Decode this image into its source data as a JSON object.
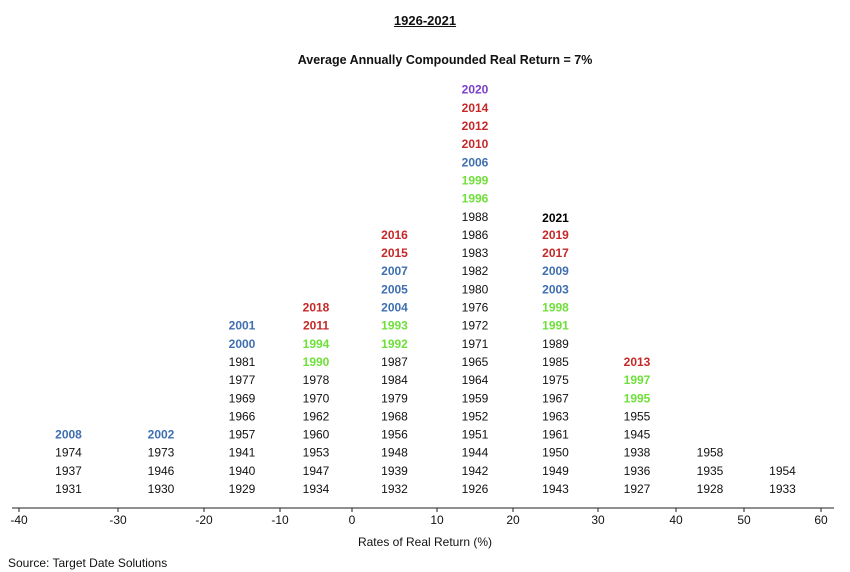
{
  "chart_data": {
    "type": "histogram",
    "title": "1926-2021",
    "subtitle": "Average Annually Compounded Real Return = 7%",
    "xlabel": "Rates of Real Return (%)",
    "source": "Source: Target Date Solutions",
    "xlim": [
      -40,
      60
    ],
    "xticks": [
      "-40",
      "-30",
      "-20",
      "-10",
      "0",
      "10",
      "20",
      "30",
      "40",
      "50",
      "60"
    ],
    "colors": {
      "default": "#111111",
      "red": "#c62828",
      "blue": "#3f6fb0",
      "green": "#6fe03a",
      "purple": "#7a3fc8"
    },
    "bins": [
      {
        "range": [
          -40,
          -30
        ],
        "years": [
          {
            "year": "1931",
            "color": "default"
          },
          {
            "year": "1937",
            "color": "default"
          },
          {
            "year": "1974",
            "color": "default"
          },
          {
            "year": "2008",
            "color": "blue"
          }
        ]
      },
      {
        "range": [
          -30,
          -20
        ],
        "years": [
          {
            "year": "1930",
            "color": "default"
          },
          {
            "year": "1946",
            "color": "default"
          },
          {
            "year": "1973",
            "color": "default"
          },
          {
            "year": "2002",
            "color": "blue"
          }
        ]
      },
      {
        "range": [
          -20,
          -10
        ],
        "years": [
          {
            "year": "1929",
            "color": "default"
          },
          {
            "year": "1940",
            "color": "default"
          },
          {
            "year": "1941",
            "color": "default"
          },
          {
            "year": "1957",
            "color": "default"
          },
          {
            "year": "1966",
            "color": "default"
          },
          {
            "year": "1969",
            "color": "default"
          },
          {
            "year": "1977",
            "color": "default"
          },
          {
            "year": "1981",
            "color": "default"
          },
          {
            "year": "2000",
            "color": "blue"
          },
          {
            "year": "2001",
            "color": "blue"
          }
        ]
      },
      {
        "range": [
          -10,
          0
        ],
        "years": [
          {
            "year": "1934",
            "color": "default"
          },
          {
            "year": "1947",
            "color": "default"
          },
          {
            "year": "1953",
            "color": "default"
          },
          {
            "year": "1960",
            "color": "default"
          },
          {
            "year": "1962",
            "color": "default"
          },
          {
            "year": "1970",
            "color": "default"
          },
          {
            "year": "1978",
            "color": "default"
          },
          {
            "year": "1990",
            "color": "green"
          },
          {
            "year": "1994",
            "color": "green"
          },
          {
            "year": "2011",
            "color": "red"
          },
          {
            "year": "2018",
            "color": "red"
          }
        ]
      },
      {
        "range": [
          0,
          10
        ],
        "years": [
          {
            "year": "1932",
            "color": "default"
          },
          {
            "year": "1939",
            "color": "default"
          },
          {
            "year": "1948",
            "color": "default"
          },
          {
            "year": "1956",
            "color": "default"
          },
          {
            "year": "1968",
            "color": "default"
          },
          {
            "year": "1979",
            "color": "default"
          },
          {
            "year": "1984",
            "color": "default"
          },
          {
            "year": "1987",
            "color": "default"
          },
          {
            "year": "1992",
            "color": "green"
          },
          {
            "year": "1993",
            "color": "green"
          },
          {
            "year": "2004",
            "color": "blue"
          },
          {
            "year": "2005",
            "color": "blue"
          },
          {
            "year": "2007",
            "color": "blue"
          },
          {
            "year": "2015",
            "color": "red"
          },
          {
            "year": "2016",
            "color": "red"
          }
        ]
      },
      {
        "range": [
          10,
          20
        ],
        "years": [
          {
            "year": "1926",
            "color": "default"
          },
          {
            "year": "1942",
            "color": "default"
          },
          {
            "year": "1944",
            "color": "default"
          },
          {
            "year": "1951",
            "color": "default"
          },
          {
            "year": "1952",
            "color": "default"
          },
          {
            "year": "1959",
            "color": "default"
          },
          {
            "year": "1964",
            "color": "default"
          },
          {
            "year": "1965",
            "color": "default"
          },
          {
            "year": "1971",
            "color": "default"
          },
          {
            "year": "1972",
            "color": "default"
          },
          {
            "year": "1976",
            "color": "default"
          },
          {
            "year": "1980",
            "color": "default"
          },
          {
            "year": "1982",
            "color": "default"
          },
          {
            "year": "1983",
            "color": "default"
          },
          {
            "year": "1986",
            "color": "default"
          },
          {
            "year": "1988",
            "color": "default"
          },
          {
            "year": "1996",
            "color": "green"
          },
          {
            "year": "1999",
            "color": "green"
          },
          {
            "year": "2006",
            "color": "blue"
          },
          {
            "year": "2010",
            "color": "red"
          },
          {
            "year": "2012",
            "color": "red"
          },
          {
            "year": "2014",
            "color": "red"
          },
          {
            "year": "2020",
            "color": "purple"
          }
        ]
      },
      {
        "range": [
          20,
          30
        ],
        "years": [
          {
            "year": "1943",
            "color": "default"
          },
          {
            "year": "1949",
            "color": "default"
          },
          {
            "year": "1950",
            "color": "default"
          },
          {
            "year": "1961",
            "color": "default"
          },
          {
            "year": "1963",
            "color": "default"
          },
          {
            "year": "1967",
            "color": "default"
          },
          {
            "year": "1975",
            "color": "default"
          },
          {
            "year": "1985",
            "color": "default"
          },
          {
            "year": "1989",
            "color": "default"
          },
          {
            "year": "1991",
            "color": "green"
          },
          {
            "year": "1998",
            "color": "green"
          },
          {
            "year": "2003",
            "color": "blue"
          },
          {
            "year": "2009",
            "color": "blue"
          },
          {
            "year": "2017",
            "color": "red"
          },
          {
            "year": "2019",
            "color": "red"
          },
          {
            "year": "2021",
            "color": "highlight"
          }
        ]
      },
      {
        "range": [
          30,
          40
        ],
        "years": [
          {
            "year": "1927",
            "color": "default"
          },
          {
            "year": "1936",
            "color": "default"
          },
          {
            "year": "1938",
            "color": "default"
          },
          {
            "year": "1945",
            "color": "default"
          },
          {
            "year": "1955",
            "color": "default"
          },
          {
            "year": "1995",
            "color": "green"
          },
          {
            "year": "1997",
            "color": "green"
          },
          {
            "year": "2013",
            "color": "red"
          }
        ]
      },
      {
        "range": [
          40,
          50
        ],
        "years": [
          {
            "year": "1928",
            "color": "default"
          },
          {
            "year": "1935",
            "color": "default"
          },
          {
            "year": "1958",
            "color": "default"
          }
        ]
      },
      {
        "range": [
          50,
          60
        ],
        "years": [
          {
            "year": "1933",
            "color": "default"
          },
          {
            "year": "1954",
            "color": "default"
          }
        ]
      }
    ]
  }
}
